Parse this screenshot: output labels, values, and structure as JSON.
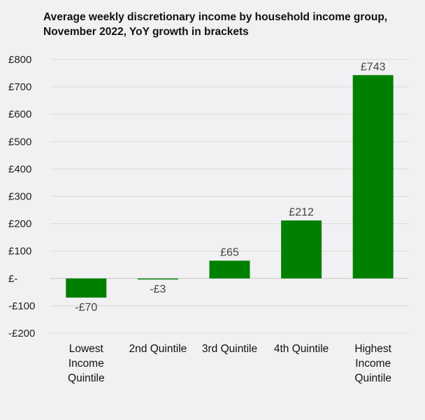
{
  "chart_data": {
    "type": "bar",
    "title": "Average weekly discretionary income by household income group, November 2022, YoY growth in brackets",
    "categories": [
      [
        "Lowest",
        "Income",
        "Quintile"
      ],
      [
        "2nd Quintile"
      ],
      [
        "3rd Quintile"
      ],
      [
        "4th Quintile"
      ],
      [
        "Highest",
        "Income",
        "Quintile"
      ]
    ],
    "values": [
      -70,
      -3,
      65,
      212,
      743
    ],
    "data_labels": [
      "-£70",
      "-£3",
      "£65",
      "£212",
      "£743"
    ],
    "ylim": [
      -200,
      800
    ],
    "yticks": [
      800,
      700,
      600,
      500,
      400,
      300,
      200,
      100,
      0,
      -100,
      -200
    ],
    "ytick_labels": [
      "£800",
      "£700",
      "£600",
      "£500",
      "£400",
      "£300",
      "£200",
      "£100",
      "£-",
      "-£100",
      "-£200"
    ],
    "bar_color": "#008000",
    "grid": true,
    "legend": "none"
  }
}
